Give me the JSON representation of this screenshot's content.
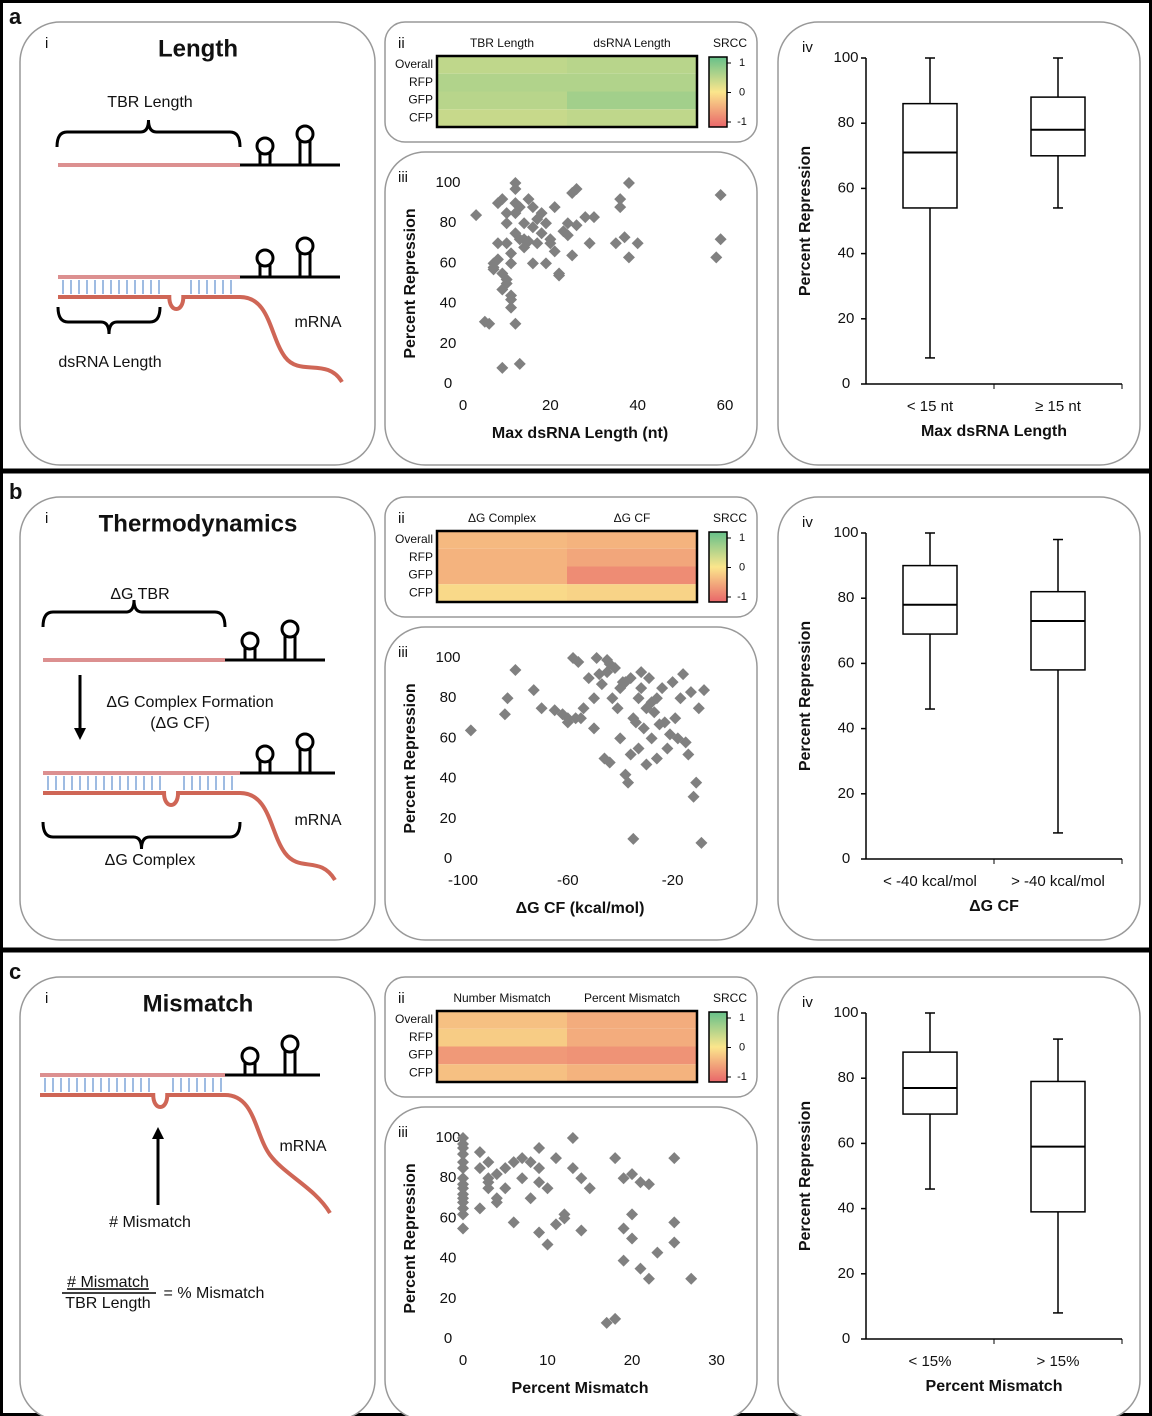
{
  "panels": [
    {
      "letter": "a",
      "numerals": [
        "i",
        "ii",
        "iii",
        "iv"
      ],
      "diagram": {
        "title": "Length",
        "labels": [
          "TBR Length",
          "dsRNA Length",
          "mRNA"
        ]
      }
    },
    {
      "letter": "b",
      "numerals": [
        "i",
        "ii",
        "iii",
        "iv"
      ],
      "diagram": {
        "title": "Thermodynamics",
        "labels": [
          "ΔG TBR",
          "ΔG Complex Formation",
          "(ΔG CF)",
          "mRNA",
          "ΔG Complex"
        ]
      }
    },
    {
      "letter": "c",
      "numerals": [
        "i",
        "ii",
        "iii",
        "iv"
      ],
      "diagram": {
        "title": "Mismatch",
        "labels": [
          "mRNA",
          "# Mismatch",
          "# Mismatch",
          "TBR Length",
          "= % Mismatch"
        ]
      }
    }
  ],
  "chart_data": [
    {
      "type": "heatmap",
      "columns": [
        "TBR Length",
        "dsRNA Length"
      ],
      "rows": [
        "Overall",
        "RFP",
        "GFP",
        "CFP"
      ],
      "values": [
        [
          0.4,
          0.45
        ],
        [
          0.5,
          0.5
        ],
        [
          0.45,
          0.6
        ],
        [
          0.35,
          0.4
        ]
      ],
      "colorbar_label": "SRCC",
      "clim": [
        -1,
        1
      ],
      "cticks": [
        1,
        0,
        -1
      ],
      "colors": [
        "#e9666a",
        "#fbe68c",
        "#66c08a"
      ]
    },
    {
      "type": "scatter",
      "xlabel": "Max dsRNA Length (nt)",
      "ylabel": "Percent Repression",
      "color": "#808080",
      "xlim": [
        0,
        60
      ],
      "ylim": [
        0,
        100
      ],
      "xticks": [
        0,
        20,
        40,
        60
      ],
      "yticks": [
        0,
        20,
        40,
        60,
        80,
        100
      ],
      "x": [
        3,
        5,
        6,
        7,
        7,
        8,
        8,
        9,
        9,
        9,
        10,
        10,
        10,
        10,
        11,
        11,
        11,
        11,
        12,
        12,
        12,
        12,
        13,
        13,
        13,
        14,
        14,
        15,
        15,
        16,
        16,
        17,
        17,
        18,
        18,
        19,
        19,
        20,
        20,
        21,
        21,
        22,
        22,
        23,
        24,
        24,
        25,
        25,
        26,
        26,
        28,
        29,
        30,
        35,
        36,
        36,
        37,
        38,
        38,
        40,
        58,
        59,
        59,
        9,
        10,
        11,
        12,
        8,
        7,
        12,
        14,
        16
      ],
      "values": [
        84,
        31,
        30,
        60,
        57,
        62,
        90,
        92,
        55,
        8,
        50,
        70,
        85,
        80,
        60,
        44,
        38,
        42,
        75,
        90,
        97,
        100,
        88,
        72,
        10,
        80,
        68,
        92,
        71,
        78,
        88,
        70,
        82,
        85,
        75,
        80,
        60,
        72,
        70,
        66,
        88,
        55,
        54,
        76,
        74,
        80,
        95,
        64,
        97,
        79,
        83,
        70,
        83,
        70,
        92,
        88,
        73,
        63,
        100,
        70,
        63,
        94,
        72,
        47,
        52,
        65,
        85,
        70,
        58,
        30,
        72,
        60
      ]
    },
    {
      "type": "box",
      "xlabel": "Max dsRNA Length",
      "ylabel": "Percent Repression",
      "color": "#000000",
      "categories": [
        "< 15 nt",
        "≥ 15 nt"
      ],
      "min": [
        8,
        54
      ],
      "q1": [
        54,
        70
      ],
      "median": [
        71,
        78
      ],
      "q3": [
        86,
        88
      ],
      "max": [
        100,
        100
      ],
      "ylim": [
        0,
        100
      ],
      "yticks": [
        0,
        20,
        40,
        60,
        80,
        100
      ]
    },
    {
      "type": "heatmap",
      "columns": [
        "ΔG Complex",
        "ΔG CF"
      ],
      "rows": [
        "Overall",
        "RFP",
        "GFP",
        "CFP"
      ],
      "values": [
        [
          -0.35,
          -0.4
        ],
        [
          -0.4,
          -0.5
        ],
        [
          -0.4,
          -0.7
        ],
        [
          -0.1,
          -0.15
        ]
      ],
      "colorbar_label": "SRCC",
      "clim": [
        -1,
        1
      ],
      "cticks": [
        1,
        0,
        -1
      ],
      "colors": [
        "#e9666a",
        "#fbe68c",
        "#66c08a"
      ]
    },
    {
      "type": "scatter",
      "xlabel": "ΔG CF (kcal/mol)",
      "ylabel": "Percent Repression",
      "color": "#808080",
      "xlim": [
        -100,
        0
      ],
      "ylim": [
        0,
        100
      ],
      "xticks": [
        -100,
        -60,
        -20
      ],
      "yticks": [
        0,
        20,
        40,
        60,
        80,
        100
      ],
      "x": [
        -97,
        -84,
        -83,
        -80,
        -73,
        -70,
        -62,
        -60,
        -58,
        -57,
        -56,
        -55,
        -54,
        -52,
        -50,
        -49,
        -48,
        -47,
        -46,
        -45,
        -45,
        -44,
        -43,
        -42,
        -41,
        -40,
        -40,
        -39,
        -38,
        -37,
        -36,
        -36,
        -35,
        -35,
        -34,
        -33,
        -33,
        -32,
        -32,
        -31,
        -30,
        -30,
        -29,
        -28,
        -28,
        -27,
        -26,
        -26,
        -25,
        -24,
        -23,
        -22,
        -21,
        -20,
        -19,
        -18,
        -17,
        -16,
        -15,
        -14,
        -13,
        -12,
        -11,
        -10,
        -9,
        -8,
        -60,
        -65,
        -50,
        -44,
        -38
      ],
      "values": [
        64,
        72,
        80,
        94,
        84,
        75,
        72,
        70,
        100,
        70,
        98,
        70,
        75,
        90,
        65,
        100,
        92,
        87,
        50,
        99,
        93,
        48,
        80,
        95,
        75,
        85,
        60,
        88,
        42,
        38,
        90,
        52,
        70,
        10,
        68,
        80,
        55,
        93,
        85,
        65,
        75,
        47,
        90,
        78,
        60,
        73,
        80,
        50,
        67,
        85,
        68,
        55,
        62,
        88,
        70,
        60,
        80,
        92,
        58,
        52,
        83,
        31,
        38,
        75,
        8,
        84,
        68,
        74,
        80,
        97,
        88
      ]
    },
    {
      "type": "box",
      "xlabel": "ΔG CF",
      "ylabel": "Percent Repression",
      "color": "#000000",
      "categories": [
        "< -40 kcal/mol",
        "> -40 kcal/mol"
      ],
      "min": [
        46,
        8
      ],
      "q1": [
        69,
        58
      ],
      "median": [
        78,
        73
      ],
      "q3": [
        90,
        82
      ],
      "max": [
        100,
        98
      ],
      "ylim": [
        0,
        100
      ],
      "yticks": [
        0,
        20,
        40,
        60,
        80,
        100
      ]
    },
    {
      "type": "heatmap",
      "columns": [
        "Number Mismatch",
        "Percent Mismatch"
      ],
      "rows": [
        "Overall",
        "RFP",
        "GFP",
        "CFP"
      ],
      "values": [
        [
          -0.3,
          -0.45
        ],
        [
          -0.2,
          -0.45
        ],
        [
          -0.6,
          -0.65
        ],
        [
          -0.3,
          -0.4
        ]
      ],
      "colorbar_label": "SRCC",
      "clim": [
        -1,
        1
      ],
      "cticks": [
        1,
        0,
        -1
      ],
      "colors": [
        "#e9666a",
        "#fbe68c",
        "#66c08a"
      ]
    },
    {
      "type": "scatter",
      "xlabel": "Percent Mismatch",
      "ylabel": "Percent Repression",
      "color": "#808080",
      "xlim": [
        0,
        31
      ],
      "ylim": [
        0,
        100
      ],
      "xticks": [
        0,
        10,
        20,
        30
      ],
      "yticks": [
        0,
        20,
        40,
        60,
        80,
        100
      ],
      "x": [
        0,
        0,
        0,
        0,
        0,
        0,
        0,
        0,
        0,
        0,
        0,
        0,
        0,
        0,
        0,
        2,
        2,
        2,
        3,
        3,
        3,
        3,
        4,
        4,
        4,
        5,
        5,
        6,
        6,
        7,
        7,
        8,
        8,
        9,
        9,
        9,
        9,
        10,
        10,
        11,
        11,
        12,
        12,
        13,
        13,
        14,
        14,
        15,
        17,
        18,
        18,
        19,
        19,
        19,
        20,
        20,
        20,
        21,
        21,
        22,
        22,
        23,
        25,
        25,
        25,
        27
      ],
      "values": [
        100,
        97,
        95,
        92,
        88,
        85,
        80,
        77,
        75,
        72,
        70,
        68,
        65,
        62,
        55,
        93,
        85,
        65,
        80,
        78,
        75,
        88,
        70,
        82,
        68,
        85,
        75,
        88,
        58,
        80,
        90,
        88,
        70,
        95,
        85,
        78,
        53,
        47,
        75,
        57,
        90,
        60,
        62,
        100,
        85,
        80,
        54,
        75,
        8,
        10,
        90,
        55,
        39,
        80,
        50,
        82,
        62,
        35,
        78,
        30,
        77,
        43,
        90,
        58,
        48,
        30
      ]
    },
    {
      "type": "box",
      "xlabel": "Percent Mismatch",
      "ylabel": "Percent Repression",
      "color": "#000000",
      "categories": [
        "< 15%",
        "> 15%"
      ],
      "min": [
        46,
        8
      ],
      "q1": [
        69,
        39
      ],
      "median": [
        77,
        59
      ],
      "q3": [
        88,
        79
      ],
      "max": [
        100,
        92
      ],
      "ylim": [
        0,
        100
      ],
      "yticks": [
        0,
        20,
        40,
        60,
        80,
        100
      ]
    }
  ]
}
